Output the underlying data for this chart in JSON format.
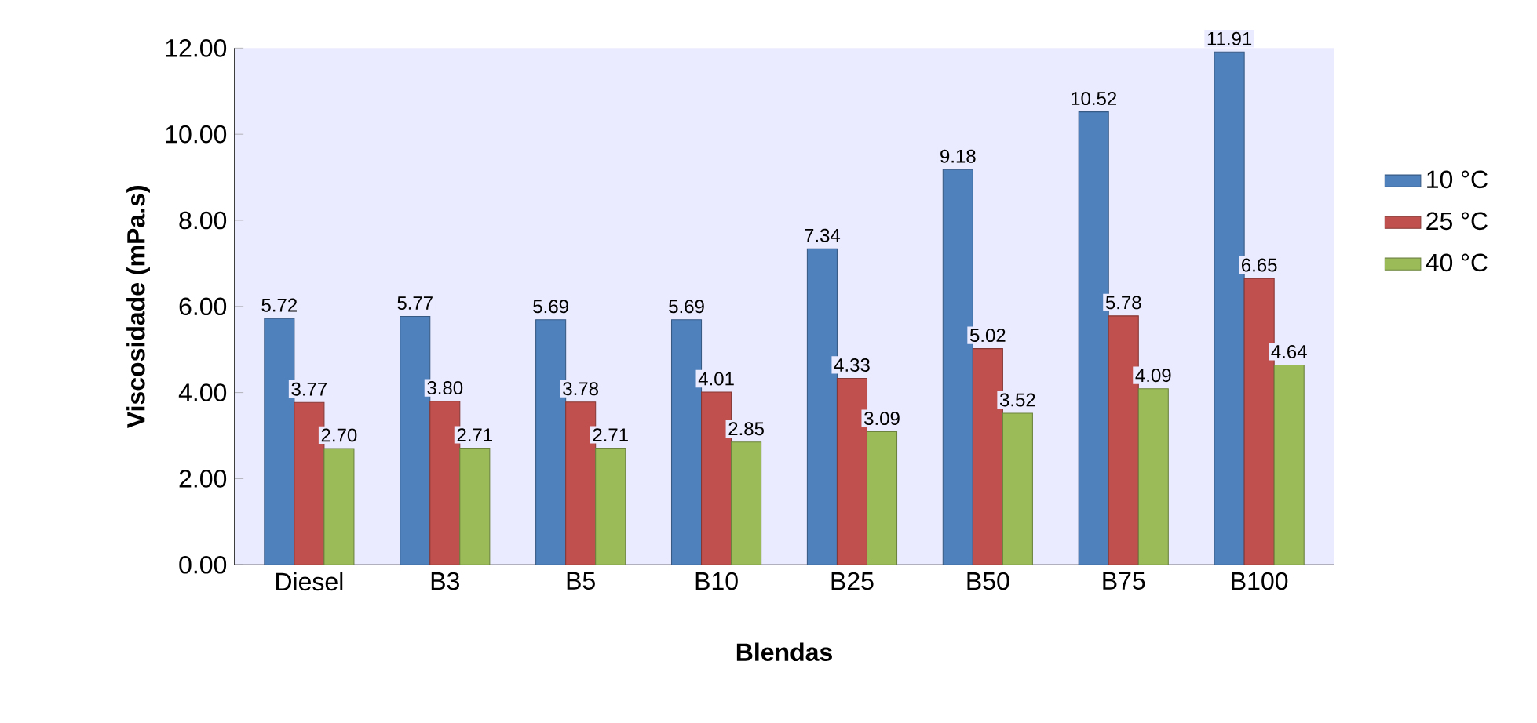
{
  "chart_data": {
    "type": "bar",
    "xlabel": "Blendas",
    "ylabel": "Viscosidade (mPa.s)",
    "categories": [
      "Diesel",
      "B3",
      "B5",
      "B10",
      "B25",
      "B50",
      "B75",
      "B100"
    ],
    "series": [
      {
        "name": "10 °C",
        "color": "#4f81bd",
        "values": [
          5.72,
          5.77,
          5.69,
          5.69,
          7.34,
          9.18,
          10.52,
          11.91
        ],
        "value_labels": [
          "5.72",
          "5.77",
          "5.69",
          "5.69",
          "7.34",
          "9.18",
          "10.52",
          "11.91"
        ]
      },
      {
        "name": "25 °C",
        "color": "#c0504d",
        "values": [
          3.77,
          3.8,
          3.78,
          4.01,
          4.33,
          5.02,
          5.78,
          6.65
        ],
        "value_labels": [
          "3.77",
          "3.80",
          "3.78",
          "4.01",
          "4.33",
          "5.02",
          "5.78",
          "6.65"
        ]
      },
      {
        "name": "40 °C",
        "color": "#9bbb59",
        "values": [
          2.7,
          2.71,
          2.71,
          2.85,
          3.09,
          3.52,
          4.09,
          4.64
        ],
        "value_labels": [
          "2.70",
          "2.71",
          "2.71",
          "2.85",
          "3.09",
          "3.52",
          "4.09",
          "4.64"
        ]
      }
    ],
    "ylim": [
      0,
      12
    ],
    "yticks": [
      {
        "value": 0,
        "label": "0.00"
      },
      {
        "value": 2,
        "label": "2.00"
      },
      {
        "value": 4,
        "label": "4.00"
      },
      {
        "value": 6,
        "label": "6.00"
      },
      {
        "value": 8,
        "label": "8.00"
      },
      {
        "value": 10,
        "label": "10.00"
      },
      {
        "value": 12,
        "label": "12.00"
      }
    ],
    "grid": false,
    "legend": "right"
  }
}
